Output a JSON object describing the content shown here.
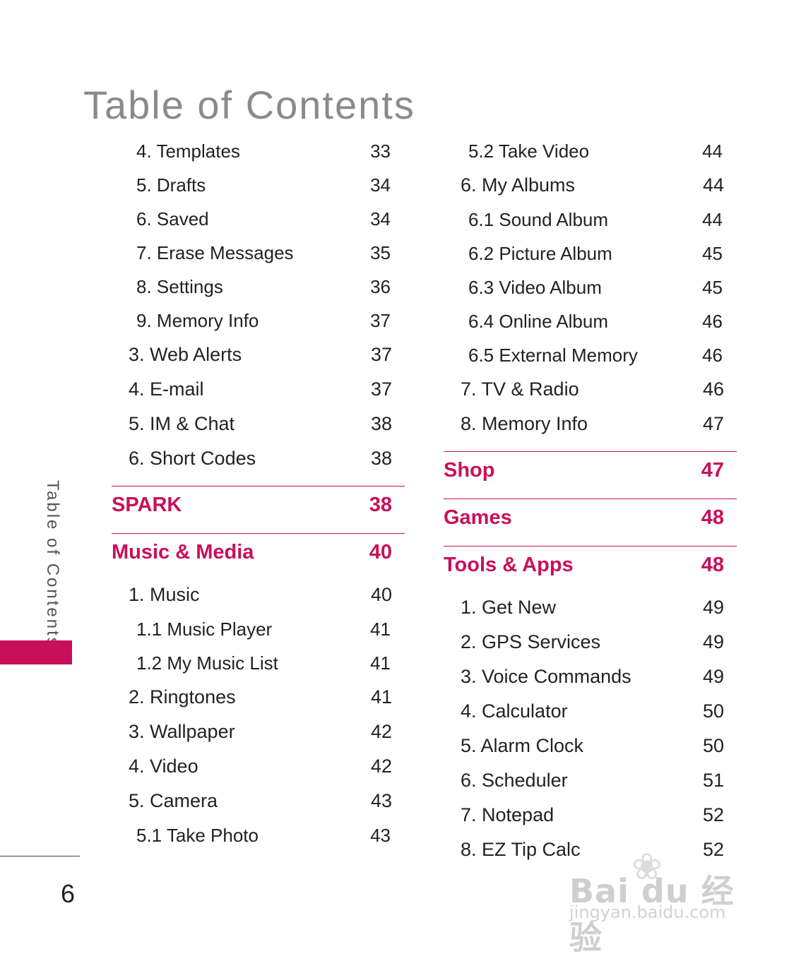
{
  "title": "Table of Contents",
  "side_label": "Table of Contents",
  "page_number": "6",
  "colors": {
    "accent": "#c8105a",
    "title_gray": "#8a8a8a",
    "text": "#222222"
  },
  "left_column": [
    {
      "kind": "l2",
      "label": "4. Templates",
      "page": "33"
    },
    {
      "kind": "l2",
      "label": "5. Drafts",
      "page": "34"
    },
    {
      "kind": "l2",
      "label": "6. Saved",
      "page": "34"
    },
    {
      "kind": "l2",
      "label": "7. Erase Messages",
      "page": "35"
    },
    {
      "kind": "l2",
      "label": "8. Settings",
      "page": "36"
    },
    {
      "kind": "l2",
      "label": "9. Memory Info",
      "page": "37"
    },
    {
      "kind": "l1",
      "label": "3. Web Alerts",
      "page": "37"
    },
    {
      "kind": "l1",
      "label": "4. E-mail",
      "page": "37"
    },
    {
      "kind": "l1",
      "label": "5. IM & Chat",
      "page": "38"
    },
    {
      "kind": "l1",
      "label": "6. Short Codes",
      "page": "38"
    },
    {
      "kind": "section",
      "label": "SPARK",
      "page": "38"
    },
    {
      "kind": "section",
      "label": "Music & Media",
      "page": "40"
    },
    {
      "kind": "l1",
      "label": "1. Music",
      "page": "40"
    },
    {
      "kind": "l2",
      "label": "1.1 Music Player",
      "page": "41"
    },
    {
      "kind": "l2",
      "label": "1.2 My Music List",
      "page": "41"
    },
    {
      "kind": "l1",
      "label": "2. Ringtones",
      "page": "41"
    },
    {
      "kind": "l1",
      "label": "3. Wallpaper",
      "page": "42"
    },
    {
      "kind": "l1",
      "label": "4. Video",
      "page": "42"
    },
    {
      "kind": "l1",
      "label": "5. Camera",
      "page": "43"
    },
    {
      "kind": "l2",
      "label": "5.1 Take Photo",
      "page": "43"
    }
  ],
  "right_column": [
    {
      "kind": "l2",
      "label": "5.2 Take Video",
      "page": "44"
    },
    {
      "kind": "l1",
      "label": "6. My Albums",
      "page": "44"
    },
    {
      "kind": "l2",
      "label": "6.1 Sound Album",
      "page": "44"
    },
    {
      "kind": "l2",
      "label": "6.2 Picture Album",
      "page": "45"
    },
    {
      "kind": "l2",
      "label": "6.3 Video Album",
      "page": "45"
    },
    {
      "kind": "l2",
      "label": "6.4 Online Album",
      "page": "46"
    },
    {
      "kind": "l2",
      "label": "6.5 External Memory",
      "page": "46"
    },
    {
      "kind": "l1",
      "label": "7. TV & Radio",
      "page": "46"
    },
    {
      "kind": "l1",
      "label": "8. Memory Info",
      "page": "47"
    },
    {
      "kind": "section",
      "label": "Shop",
      "page": "47"
    },
    {
      "kind": "section",
      "label": "Games",
      "page": "48"
    },
    {
      "kind": "section",
      "label": "Tools & Apps",
      "page": "48"
    },
    {
      "kind": "l1",
      "label": "1. Get New",
      "page": "49"
    },
    {
      "kind": "l1",
      "label": "2. GPS Services",
      "page": "49"
    },
    {
      "kind": "l1",
      "label": "3. Voice Commands",
      "page": "49"
    },
    {
      "kind": "l1",
      "label": "4. Calculator",
      "page": "50"
    },
    {
      "kind": "l1",
      "label": "5. Alarm Clock",
      "page": "50"
    },
    {
      "kind": "l1",
      "label": "6. Scheduler",
      "page": "51"
    },
    {
      "kind": "l1",
      "label": "7. Notepad",
      "page": "52"
    },
    {
      "kind": "l1",
      "label": "8. EZ Tip Calc",
      "page": "52"
    }
  ],
  "watermark": {
    "brand": "Bai du 经验",
    "url": "jingyan.baidu.com",
    "icon": "paw-icon"
  }
}
